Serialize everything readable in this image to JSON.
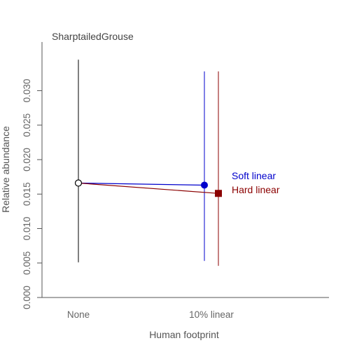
{
  "chart_data": {
    "type": "scatter",
    "title": "SharptailedGrouse",
    "xlabel": "Human footprint",
    "ylabel": "Relative abundance",
    "categories": [
      "None",
      "10% linear"
    ],
    "ylim": [
      0,
      0.0345
    ],
    "yticks": [
      "0.000",
      "0.005",
      "0.010",
      "0.015",
      "0.020",
      "0.025",
      "0.030"
    ],
    "grid": false,
    "legend": "inline-right",
    "reference": {
      "category": "None",
      "y": 0.0166,
      "lower": 0.0051,
      "upper": 0.0345,
      "color": "#000000",
      "marker": "open-circle"
    },
    "series": [
      {
        "name": "Soft linear",
        "color": "#0000cc",
        "marker": "filled-circle",
        "points": [
          {
            "category": "None",
            "y": 0.0166
          },
          {
            "category": "10% linear",
            "y": 0.0163,
            "lower": 0.0053,
            "upper": 0.0328
          }
        ]
      },
      {
        "name": "Hard linear",
        "color": "#8b0000",
        "marker": "filled-square",
        "points": [
          {
            "category": "None",
            "y": 0.0166
          },
          {
            "category": "10% linear",
            "y": 0.0151,
            "lower": 0.0046,
            "upper": 0.0328
          }
        ]
      }
    ]
  }
}
